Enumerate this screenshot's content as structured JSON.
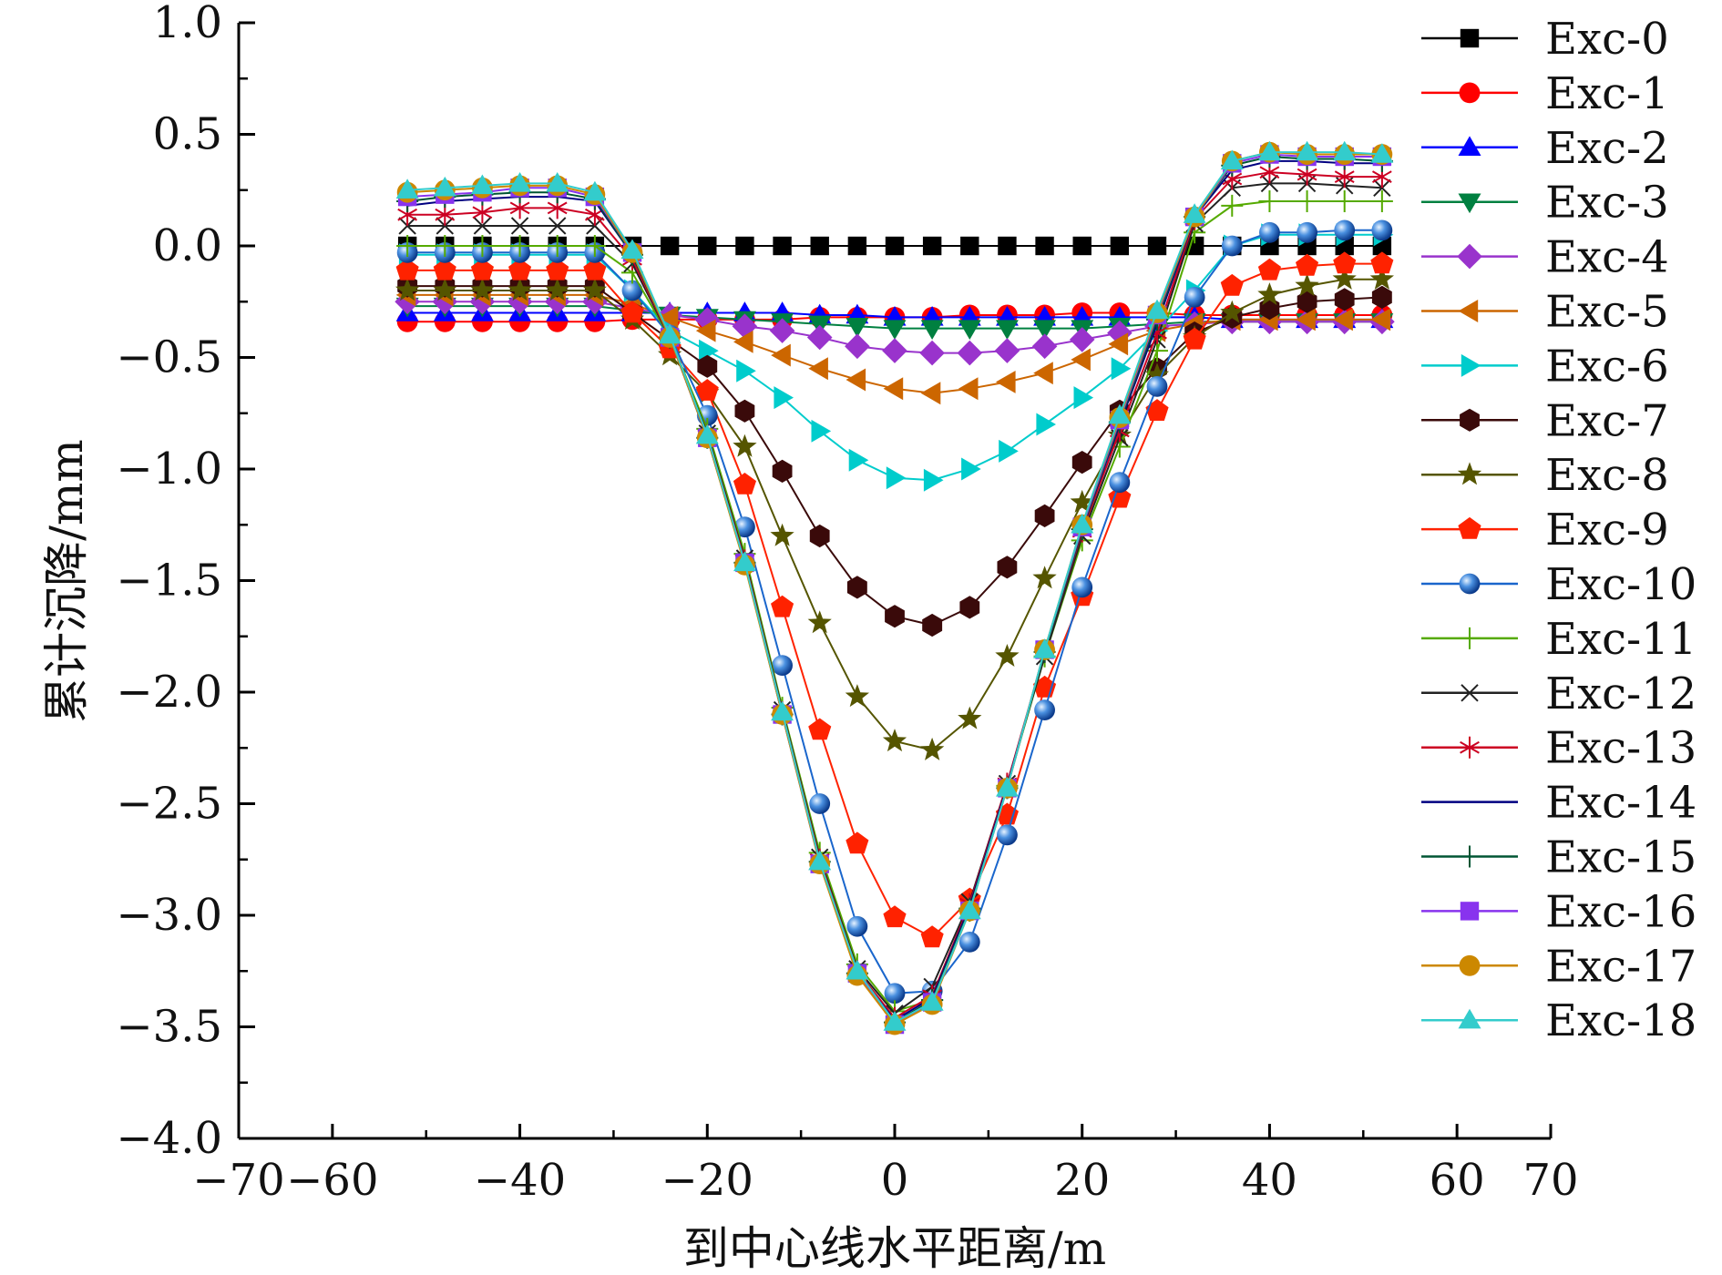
{
  "chart_data": {
    "type": "line",
    "title": "",
    "xlabel": "到中心线水平距离/m",
    "ylabel": "累计沉降/mm",
    "xlim": [
      -70,
      70
    ],
    "ylim": [
      -4.0,
      1.0
    ],
    "x_ticks": [
      "−70",
      "−60",
      "−40",
      "−20",
      "0",
      "20",
      "40",
      "60",
      "70"
    ],
    "x_tick_values": [
      -70,
      -60,
      -40,
      -20,
      0,
      20,
      40,
      60,
      70
    ],
    "y_ticks": [
      "1.0",
      "0.5",
      "0.0",
      "−0.5",
      "−1.0",
      "−1.5",
      "−2.0",
      "−2.5",
      "−3.0",
      "−3.5",
      "−4.0"
    ],
    "y_tick_values": [
      1.0,
      0.5,
      0.0,
      -0.5,
      -1.0,
      -1.5,
      -2.0,
      -2.5,
      -3.0,
      -3.5,
      -4.0
    ],
    "grid": false,
    "legend_position": "right",
    "x": [
      -52,
      -48,
      -44,
      -40,
      -36,
      -32,
      -28,
      -24,
      -20,
      -16,
      -12,
      -8,
      -4,
      0,
      4,
      8,
      12,
      16,
      20,
      24,
      28,
      32,
      36,
      40,
      44,
      48,
      52
    ],
    "series": [
      {
        "name": "Exc-0",
        "color": "#000000",
        "marker": "square",
        "values": [
          0,
          0,
          0,
          0,
          0,
          0,
          0,
          0,
          0,
          0,
          0,
          0,
          0,
          0,
          0,
          0,
          0,
          0,
          0,
          0,
          0,
          0,
          0,
          0,
          0,
          0,
          0
        ]
      },
      {
        "name": "Exc-1",
        "color": "#ff0000",
        "marker": "circle",
        "values": [
          -0.34,
          -0.34,
          -0.34,
          -0.34,
          -0.34,
          -0.34,
          -0.33,
          -0.33,
          -0.33,
          -0.33,
          -0.33,
          -0.32,
          -0.32,
          -0.32,
          -0.32,
          -0.31,
          -0.31,
          -0.31,
          -0.3,
          -0.3,
          -0.3,
          -0.31,
          -0.31,
          -0.31,
          -0.31,
          -0.31,
          -0.31
        ]
      },
      {
        "name": "Exc-2",
        "color": "#0000ff",
        "marker": "triangle-up",
        "values": [
          -0.3,
          -0.3,
          -0.3,
          -0.3,
          -0.3,
          -0.3,
          -0.3,
          -0.3,
          -0.3,
          -0.3,
          -0.3,
          -0.31,
          -0.31,
          -0.32,
          -0.32,
          -0.32,
          -0.32,
          -0.32,
          -0.32,
          -0.32,
          -0.32,
          -0.32,
          -0.33,
          -0.33,
          -0.33,
          -0.33,
          -0.33
        ]
      },
      {
        "name": "Exc-3",
        "color": "#008040",
        "marker": "triangle-down",
        "values": [
          -0.27,
          -0.27,
          -0.27,
          -0.27,
          -0.27,
          -0.27,
          -0.29,
          -0.31,
          -0.32,
          -0.33,
          -0.34,
          -0.35,
          -0.36,
          -0.37,
          -0.37,
          -0.37,
          -0.37,
          -0.37,
          -0.37,
          -0.36,
          -0.35,
          -0.34,
          -0.34,
          -0.34,
          -0.34,
          -0.34,
          -0.34
        ]
      },
      {
        "name": "Exc-4",
        "color": "#9933cc",
        "marker": "diamond",
        "values": [
          -0.25,
          -0.25,
          -0.25,
          -0.25,
          -0.25,
          -0.25,
          -0.28,
          -0.31,
          -0.33,
          -0.36,
          -0.38,
          -0.41,
          -0.45,
          -0.47,
          -0.48,
          -0.48,
          -0.47,
          -0.45,
          -0.42,
          -0.39,
          -0.36,
          -0.35,
          -0.34,
          -0.34,
          -0.34,
          -0.34,
          -0.34
        ]
      },
      {
        "name": "Exc-5",
        "color": "#cc6600",
        "marker": "triangle-left",
        "values": [
          -0.22,
          -0.22,
          -0.22,
          -0.22,
          -0.22,
          -0.22,
          -0.26,
          -0.32,
          -0.38,
          -0.43,
          -0.49,
          -0.55,
          -0.6,
          -0.64,
          -0.66,
          -0.64,
          -0.61,
          -0.57,
          -0.51,
          -0.44,
          -0.38,
          -0.35,
          -0.33,
          -0.33,
          -0.33,
          -0.33,
          -0.33
        ]
      },
      {
        "name": "Exc-6",
        "color": "#00cccc",
        "marker": "triangle-right",
        "values": [
          -0.04,
          -0.04,
          -0.04,
          -0.04,
          -0.04,
          -0.04,
          -0.2,
          -0.38,
          -0.47,
          -0.56,
          -0.68,
          -0.83,
          -0.96,
          -1.04,
          -1.05,
          -1.0,
          -0.92,
          -0.8,
          -0.68,
          -0.55,
          -0.38,
          -0.2,
          0.0,
          0.05,
          0.05,
          0.05,
          0.05
        ]
      },
      {
        "name": "Exc-7",
        "color": "#3a0a0a",
        "marker": "hexagon",
        "values": [
          -0.18,
          -0.18,
          -0.18,
          -0.18,
          -0.18,
          -0.18,
          -0.3,
          -0.42,
          -0.54,
          -0.74,
          -1.01,
          -1.3,
          -1.53,
          -1.66,
          -1.7,
          -1.62,
          -1.44,
          -1.21,
          -0.97,
          -0.74,
          -0.55,
          -0.39,
          -0.32,
          -0.28,
          -0.25,
          -0.24,
          -0.23
        ]
      },
      {
        "name": "Exc-8",
        "color": "#555500",
        "marker": "star",
        "values": [
          -0.2,
          -0.2,
          -0.2,
          -0.2,
          -0.2,
          -0.2,
          -0.33,
          -0.49,
          -0.66,
          -0.9,
          -1.3,
          -1.69,
          -2.02,
          -2.22,
          -2.26,
          -2.12,
          -1.84,
          -1.49,
          -1.15,
          -0.85,
          -0.58,
          -0.41,
          -0.3,
          -0.22,
          -0.18,
          -0.15,
          -0.15
        ]
      },
      {
        "name": "Exc-9",
        "color": "#ff2200",
        "marker": "pentagon",
        "values": [
          -0.11,
          -0.11,
          -0.11,
          -0.11,
          -0.11,
          -0.11,
          -0.3,
          -0.46,
          -0.65,
          -1.07,
          -1.62,
          -2.17,
          -2.68,
          -3.01,
          -3.1,
          -2.93,
          -2.55,
          -1.98,
          -1.57,
          -1.13,
          -0.74,
          -0.42,
          -0.18,
          -0.11,
          -0.09,
          -0.08,
          -0.08
        ]
      },
      {
        "name": "Exc-10",
        "color": "#1a66cc",
        "marker": "sphere",
        "values": [
          -0.03,
          -0.03,
          -0.03,
          -0.03,
          -0.03,
          -0.03,
          -0.2,
          -0.4,
          -0.76,
          -1.26,
          -1.88,
          -2.5,
          -3.05,
          -3.35,
          -3.34,
          -3.12,
          -2.64,
          -2.08,
          -1.53,
          -1.06,
          -0.63,
          -0.23,
          0.0,
          0.06,
          0.06,
          0.07,
          0.07
        ]
      },
      {
        "name": "Exc-11",
        "color": "#55aa00",
        "marker": "plus",
        "values": [
          0.0,
          0.0,
          0.0,
          0.0,
          0.0,
          0.0,
          -0.12,
          -0.41,
          -0.82,
          -1.38,
          -2.07,
          -2.72,
          -3.22,
          -3.43,
          -3.38,
          -2.98,
          -2.42,
          -1.84,
          -1.32,
          -0.9,
          -0.47,
          0.06,
          0.18,
          0.2,
          0.2,
          0.2,
          0.2
        ]
      },
      {
        "name": "Exc-12",
        "color": "#222222",
        "marker": "x",
        "values": [
          0.09,
          0.09,
          0.09,
          0.09,
          0.09,
          0.09,
          -0.08,
          -0.41,
          -0.84,
          -1.4,
          -2.08,
          -2.74,
          -3.24,
          -3.44,
          -3.32,
          -2.94,
          -2.41,
          -1.84,
          -1.3,
          -0.86,
          -0.42,
          0.1,
          0.26,
          0.28,
          0.28,
          0.27,
          0.26
        ]
      },
      {
        "name": "Exc-13",
        "color": "#cc0022",
        "marker": "asterisk",
        "values": [
          0.14,
          0.14,
          0.15,
          0.17,
          0.17,
          0.14,
          -0.06,
          -0.41,
          -0.85,
          -1.41,
          -2.09,
          -2.75,
          -3.25,
          -3.46,
          -3.36,
          -2.95,
          -2.41,
          -1.82,
          -1.28,
          -0.83,
          -0.39,
          0.12,
          0.3,
          0.33,
          0.32,
          0.31,
          0.31
        ]
      },
      {
        "name": "Exc-14",
        "color": "#000080",
        "marker": "none",
        "values": [
          0.18,
          0.2,
          0.21,
          0.22,
          0.22,
          0.2,
          -0.04,
          -0.41,
          -0.86,
          -1.42,
          -2.1,
          -2.76,
          -3.26,
          -3.47,
          -3.37,
          -2.96,
          -2.42,
          -1.82,
          -1.27,
          -0.8,
          -0.35,
          0.13,
          0.34,
          0.38,
          0.38,
          0.37,
          0.37
        ]
      },
      {
        "name": "Exc-15",
        "color": "#005533",
        "marker": "plus",
        "values": [
          0.2,
          0.22,
          0.23,
          0.24,
          0.24,
          0.21,
          -0.04,
          -0.41,
          -0.86,
          -1.42,
          -2.1,
          -2.76,
          -3.26,
          -3.48,
          -3.38,
          -2.97,
          -2.43,
          -1.82,
          -1.27,
          -0.79,
          -0.33,
          0.13,
          0.36,
          0.4,
          0.39,
          0.39,
          0.38
        ]
      },
      {
        "name": "Exc-16",
        "color": "#8833ee",
        "marker": "square",
        "values": [
          0.22,
          0.23,
          0.24,
          0.26,
          0.26,
          0.22,
          -0.03,
          -0.41,
          -0.86,
          -1.42,
          -2.1,
          -2.77,
          -3.26,
          -3.49,
          -3.39,
          -2.98,
          -2.43,
          -1.81,
          -1.26,
          -0.78,
          -0.31,
          0.13,
          0.37,
          0.41,
          0.4,
          0.4,
          0.4
        ]
      },
      {
        "name": "Exc-17",
        "color": "#cc8800",
        "marker": "circle",
        "values": [
          0.24,
          0.25,
          0.26,
          0.27,
          0.27,
          0.23,
          -0.03,
          -0.41,
          -0.86,
          -1.43,
          -2.1,
          -2.77,
          -3.27,
          -3.49,
          -3.4,
          -2.98,
          -2.43,
          -1.81,
          -1.25,
          -0.77,
          -0.3,
          0.13,
          0.38,
          0.42,
          0.41,
          0.41,
          0.41
        ]
      },
      {
        "name": "Exc-18",
        "color": "#33cccc",
        "marker": "triangle-up",
        "values": [
          0.25,
          0.26,
          0.27,
          0.28,
          0.28,
          0.24,
          -0.02,
          -0.4,
          -0.85,
          -1.42,
          -2.09,
          -2.76,
          -3.25,
          -3.48,
          -3.39,
          -2.98,
          -2.43,
          -1.81,
          -1.25,
          -0.76,
          -0.29,
          0.14,
          0.38,
          0.42,
          0.42,
          0.42,
          0.41
        ]
      }
    ]
  }
}
